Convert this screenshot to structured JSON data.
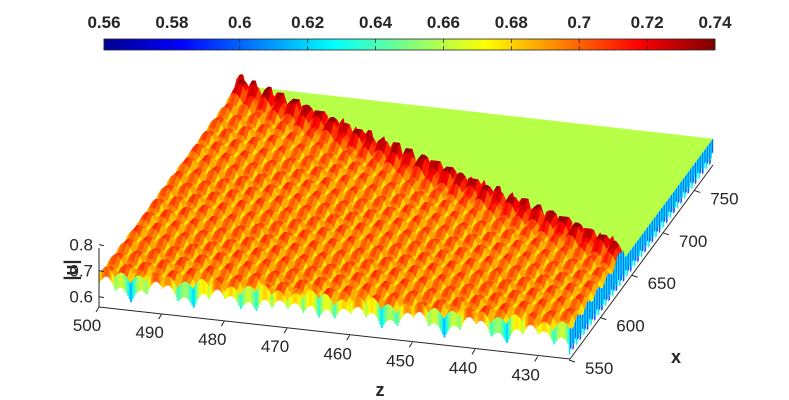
{
  "chart_data": {
    "type": "surface3d",
    "title": "",
    "colormap": "jet",
    "colorbar": {
      "orientation": "horizontal",
      "placement": "top",
      "ticks": [
        0.56,
        0.58,
        0.6,
        0.62,
        0.64,
        0.66,
        0.68,
        0.7,
        0.72,
        0.74
      ],
      "tick_labels": [
        "0.56",
        "0.58",
        "0.6",
        "0.62",
        "0.64",
        "0.66",
        "0.68",
        "0.7",
        "0.72",
        "0.74"
      ],
      "clim": [
        0.56,
        0.74
      ]
    },
    "z_axis": {
      "label": "z",
      "ticks": [
        500,
        490,
        480,
        470,
        460,
        450,
        440,
        430
      ],
      "tick_labels": [
        "500",
        "490",
        "480",
        "470",
        "460",
        "450",
        "440",
        "430"
      ],
      "range": [
        425,
        500
      ]
    },
    "x_axis": {
      "label": "x",
      "ticks": [
        550,
        600,
        650,
        700,
        750
      ],
      "tick_labels": [
        "550",
        "600",
        "650",
        "700",
        "750"
      ],
      "range": [
        550,
        780
      ]
    },
    "u_axis": {
      "label": "|u|",
      "ticks": [
        0.6,
        0.7,
        0.8
      ],
      "tick_labels": [
        "0.6",
        "0.7",
        "0.8"
      ],
      "range": [
        0.56,
        0.8
      ]
    },
    "surface_description": {
      "background_level": 0.66,
      "peak_level": 0.735,
      "trough_level": 0.56,
      "ripple_period_z": 2.5
    }
  }
}
